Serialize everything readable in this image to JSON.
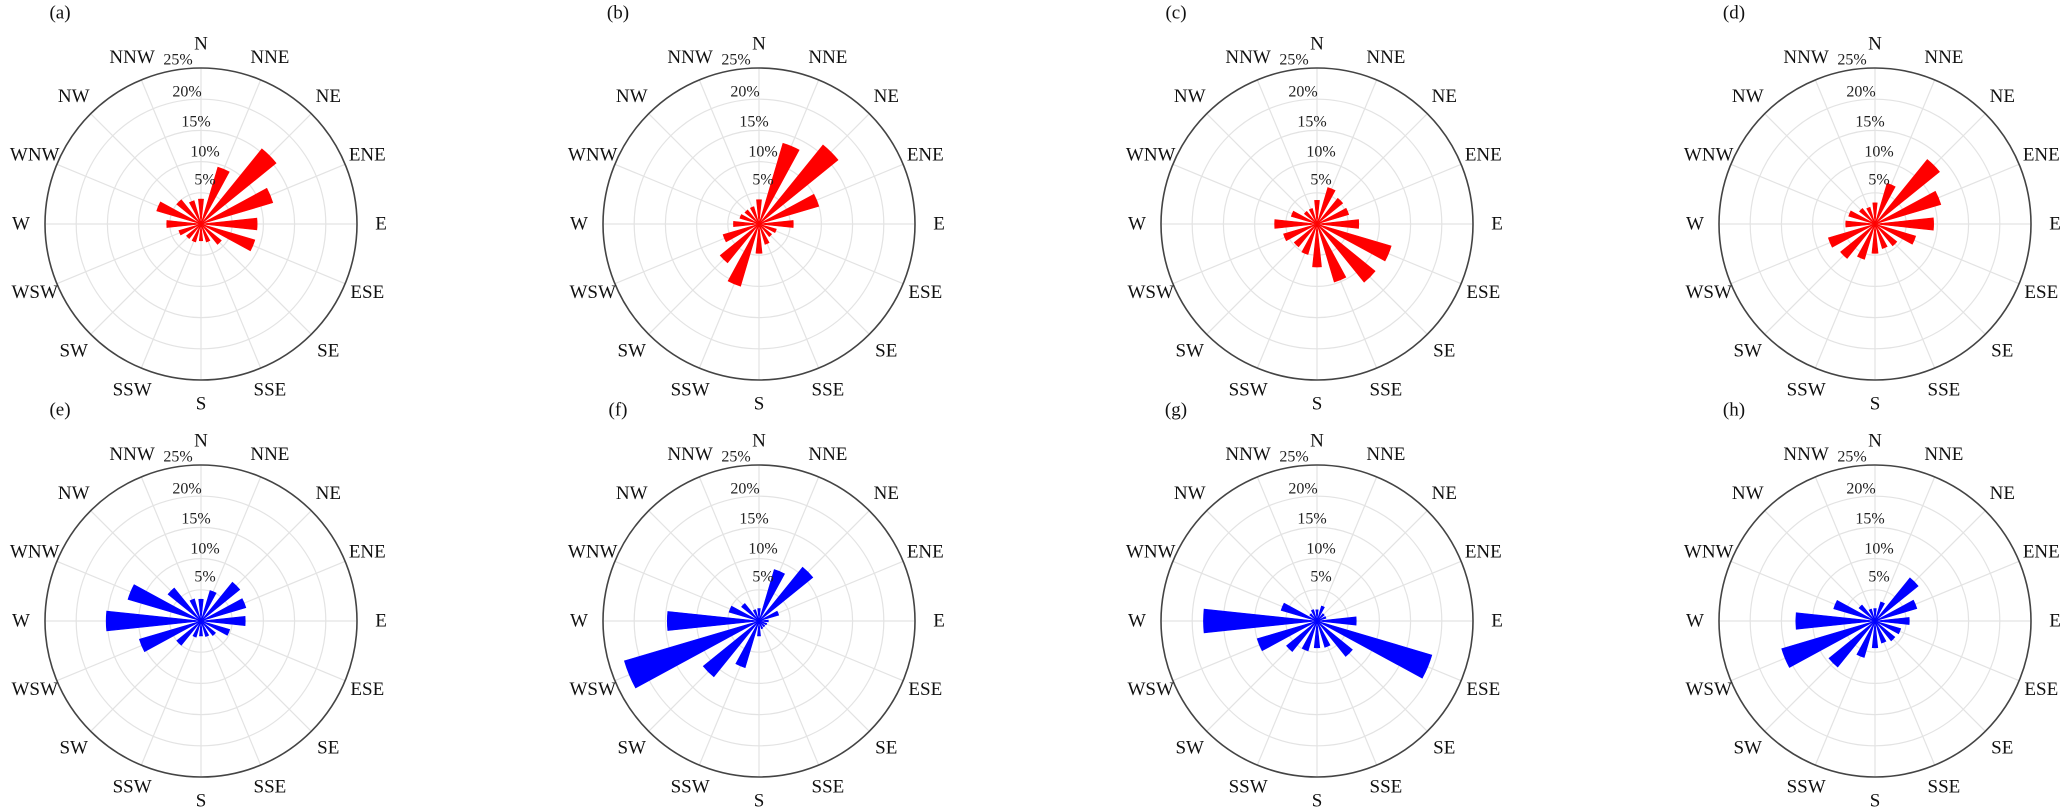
{
  "chart_data": [
    {
      "type": "bar",
      "polar": true,
      "label": "(a)",
      "color": "#ff0000",
      "categories": [
        "N",
        "NNE",
        "NE",
        "ENE",
        "E",
        "ESE",
        "SE",
        "SSE",
        "S",
        "SSW",
        "SW",
        "WSW",
        "W",
        "WNW",
        "NW",
        "NNW"
      ],
      "values": [
        4.0,
        9.5,
        15.5,
        12.0,
        9.0,
        9.0,
        4.2,
        3.0,
        2.7,
        3.0,
        3.0,
        3.7,
        5.5,
        7.4,
        5.0,
        3.9
      ],
      "radial_ticks": [
        "5%",
        "10%",
        "15%",
        "20%",
        "25%"
      ],
      "rlim": [
        0,
        25
      ],
      "grid": true
    },
    {
      "type": "bar",
      "polar": true,
      "label": "(b)",
      "color": "#ff0000",
      "categories": [
        "N",
        "NNE",
        "NE",
        "ENE",
        "E",
        "ESE",
        "SE",
        "SSE",
        "S",
        "SSW",
        "SW",
        "WSW",
        "W",
        "WNW",
        "NW",
        "NNW"
      ],
      "values": [
        3.9,
        13.5,
        16.3,
        10.0,
        5.5,
        2.9,
        2.6,
        3.4,
        4.7,
        10.4,
        8.0,
        6.0,
        4.1,
        3.2,
        2.9,
        2.9
      ],
      "radial_ticks": [
        "5%",
        "10%",
        "15%",
        "20%",
        "25%"
      ],
      "rlim": [
        0,
        25
      ],
      "grid": true
    },
    {
      "type": "bar",
      "polar": true,
      "label": "(c)",
      "color": "#ff0000",
      "categories": [
        "N",
        "NNE",
        "NE",
        "ENE",
        "E",
        "ESE",
        "SE",
        "SSE",
        "S",
        "SSW",
        "SW",
        "WSW",
        "W",
        "WNW",
        "NW",
        "NNW"
      ],
      "values": [
        3.8,
        6.1,
        5.3,
        5.3,
        6.7,
        12.4,
        12.0,
        9.7,
        6.9,
        5.1,
        4.7,
        5.6,
        6.8,
        4.3,
        2.6,
        2.6
      ],
      "radial_ticks": [
        "5%",
        "10%",
        "15%",
        "20%",
        "25%"
      ],
      "rlim": [
        0,
        25
      ],
      "grid": true
    },
    {
      "type": "bar",
      "polar": true,
      "label": "(d)",
      "color": "#ff0000",
      "categories": [
        "N",
        "NNE",
        "NE",
        "ENE",
        "E",
        "ESE",
        "SE",
        "SSE",
        "S",
        "SSW",
        "SW",
        "WSW",
        "W",
        "WNW",
        "NW",
        "NNW"
      ],
      "values": [
        3.4,
        6.8,
        13.3,
        11.0,
        9.4,
        6.8,
        4.5,
        4.1,
        4.7,
        5.9,
        7.1,
        7.8,
        4.7,
        4.4,
        3.2,
        2.8
      ],
      "radial_ticks": [
        "5%",
        "10%",
        "15%",
        "20%",
        "25%"
      ],
      "rlim": [
        0,
        25
      ],
      "grid": true
    },
    {
      "type": "bar",
      "polar": true,
      "label": "(e)",
      "color": "#0000ff",
      "categories": [
        "N",
        "NNE",
        "NE",
        "ENE",
        "E",
        "ESE",
        "SE",
        "SSE",
        "S",
        "SSW",
        "SW",
        "WSW",
        "W",
        "WNW",
        "NW",
        "NNW"
      ],
      "values": [
        3.5,
        5.1,
        8.0,
        7.5,
        7.1,
        4.8,
        3.0,
        2.6,
        2.4,
        2.7,
        5.0,
        10.3,
        15.2,
        12.2,
        6.8,
        3.7
      ],
      "radial_ticks": [
        "5%",
        "10%",
        "15%",
        "20%",
        "25%"
      ],
      "rlim": [
        0,
        25
      ],
      "grid": true
    },
    {
      "type": "bar",
      "polar": true,
      "label": "(f)",
      "color": "#0000ff",
      "categories": [
        "N",
        "NNE",
        "NE",
        "ENE",
        "E",
        "ESE",
        "SE",
        "SSE",
        "S",
        "SSW",
        "SW",
        "WSW",
        "W",
        "WNW",
        "NW",
        "NNW"
      ],
      "values": [
        2.0,
        8.6,
        11.1,
        3.3,
        1.5,
        1.3,
        1.2,
        1.3,
        2.4,
        7.8,
        11.5,
        22.5,
        14.7,
        5.0,
        3.6,
        1.9
      ],
      "radial_ticks": [
        "5%",
        "10%",
        "15%",
        "20%",
        "25%"
      ],
      "rlim": [
        0,
        25
      ],
      "grid": true
    },
    {
      "type": "bar",
      "polar": true,
      "label": "(g)",
      "color": "#0000ff",
      "categories": [
        "N",
        "NNE",
        "NE",
        "ENE",
        "E",
        "ESE",
        "SE",
        "SSE",
        "S",
        "SSW",
        "SW",
        "WSW",
        "W",
        "WNW",
        "NW",
        "NNW"
      ],
      "values": [
        1.8,
        2.5,
        1.5,
        1.5,
        6.3,
        19.2,
        7.3,
        4.4,
        4.3,
        5.0,
        6.3,
        10.0,
        18.2,
        6.0,
        1.5,
        1.9
      ],
      "radial_ticks": [
        "5%",
        "10%",
        "15%",
        "20%",
        "25%"
      ],
      "rlim": [
        0,
        25
      ],
      "grid": true
    },
    {
      "type": "bar",
      "polar": true,
      "label": "(h)",
      "color": "#0000ff",
      "categories": [
        "N",
        "NNE",
        "NE",
        "ENE",
        "E",
        "ESE",
        "SE",
        "SSE",
        "S",
        "SSW",
        "SW",
        "WSW",
        "W",
        "WNW",
        "NW",
        "NNW"
      ],
      "values": [
        2.0,
        3.2,
        8.9,
        7.0,
        5.5,
        4.3,
        4.1,
        3.7,
        4.3,
        6.1,
        9.5,
        15.6,
        12.7,
        6.9,
        3.3,
        2.0
      ],
      "radial_ticks": [
        "5%",
        "10%",
        "15%",
        "20%",
        "25%"
      ],
      "rlim": [
        0,
        25
      ],
      "grid": true
    }
  ]
}
